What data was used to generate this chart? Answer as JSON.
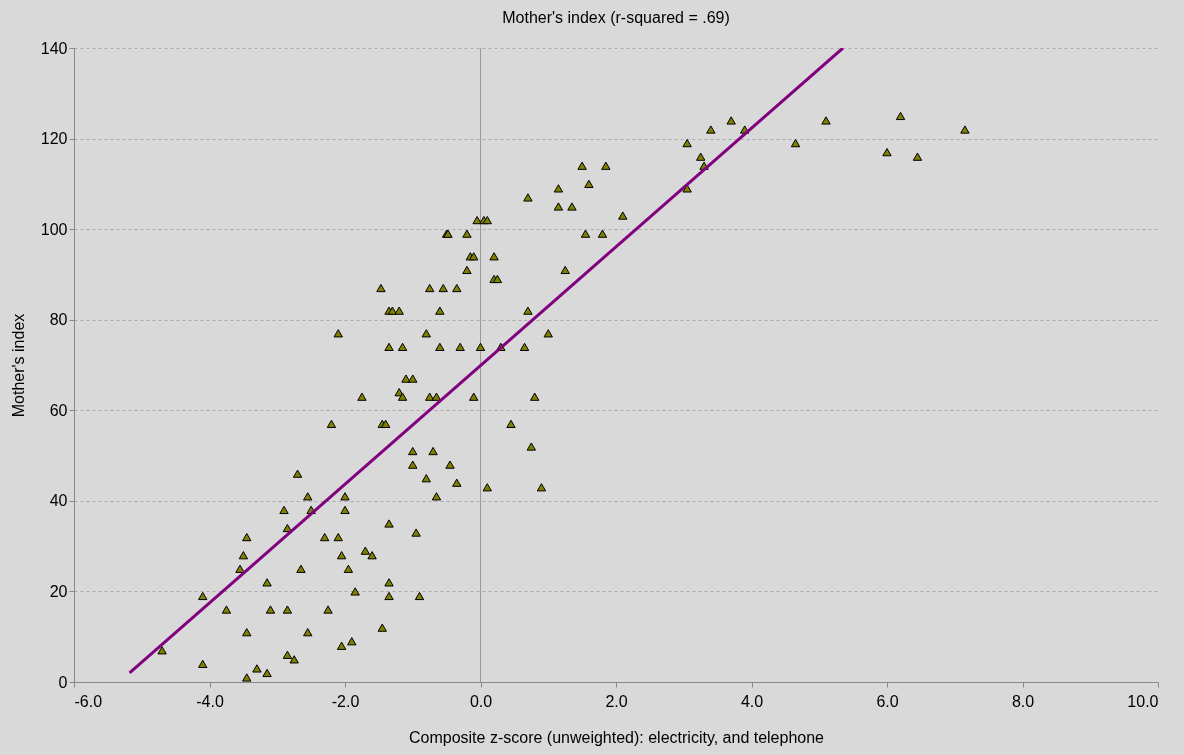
{
  "chart_data": {
    "type": "scatter",
    "title": "Mother's index (r-squared = .69)",
    "xlabel": "Composite z-score (unweighted): electricity, and telephone",
    "ylabel": "Mother's index",
    "xlim": [
      -6,
      10
    ],
    "ylim": [
      0,
      140
    ],
    "xticks": [
      {
        "value": -6,
        "label": "-6.0"
      },
      {
        "value": -4,
        "label": "-4.0"
      },
      {
        "value": -2,
        "label": "-2.0"
      },
      {
        "value": 0,
        "label": "0.0"
      },
      {
        "value": 2,
        "label": "2.0"
      },
      {
        "value": 4,
        "label": "4.0"
      },
      {
        "value": 6,
        "label": "6.0"
      },
      {
        "value": 8,
        "label": "8.0"
      },
      {
        "value": 10,
        "label": "10.0"
      }
    ],
    "yticks": [
      0,
      20,
      40,
      60,
      80,
      100,
      120,
      140
    ],
    "grid": "y",
    "ref_lines": [
      {
        "axis": "x",
        "value": 0,
        "color": "#999999"
      }
    ],
    "series": [
      {
        "marker": "triangle",
        "color": "#808000",
        "x": [
          -4.7,
          -4.1,
          -4.1,
          -3.75,
          -3.55,
          -3.5,
          -3.45,
          -3.45,
          -3.45,
          -3.3,
          -3.15,
          -3.15,
          -3.1,
          -2.9,
          -2.85,
          -2.85,
          -2.85,
          -2.75,
          -2.7,
          -2.65,
          -2.55,
          -2.55,
          -2.5,
          -2.3,
          -2.25,
          -2.2,
          -2.1,
          -2.1,
          -2.05,
          -2.05,
          -2.0,
          -2.0,
          -1.95,
          -1.9,
          -1.85,
          -1.75,
          -1.7,
          -1.6,
          -1.47,
          -1.45,
          -1.45,
          -1.4,
          -1.35,
          -1.35,
          -1.35,
          -1.35,
          -1.35,
          -1.3,
          -1.2,
          -1.2,
          -1.15,
          -1.15,
          -1.1,
          -1.0,
          -1.0,
          -1.0,
          -0.95,
          -0.9,
          -0.8,
          -0.8,
          -0.75,
          -0.75,
          -0.7,
          -0.65,
          -0.65,
          -0.6,
          -0.6,
          -0.55,
          -0.5,
          -0.48,
          -0.45,
          -0.35,
          -0.35,
          -0.3,
          -0.2,
          -0.2,
          -0.15,
          -0.1,
          -0.1,
          -0.05,
          0.0,
          0.05,
          0.1,
          0.1,
          0.2,
          0.2,
          0.25,
          0.3,
          0.45,
          0.65,
          0.7,
          0.7,
          0.75,
          0.8,
          0.9,
          1.0,
          1.15,
          1.15,
          1.25,
          1.35,
          1.5,
          1.55,
          1.6,
          1.8,
          1.85,
          2.1,
          3.05,
          3.05,
          3.25,
          3.3,
          3.4,
          3.7,
          3.9,
          4.65,
          5.1,
          6.0,
          6.2,
          6.45,
          7.15
        ],
        "values": [
          7,
          19,
          4,
          16,
          25,
          28,
          32,
          11,
          1,
          3,
          22,
          2,
          16,
          38,
          34,
          16,
          6,
          5,
          46,
          25,
          41,
          11,
          38,
          32,
          16,
          57,
          77,
          32,
          28,
          8,
          38,
          41,
          25,
          9,
          20,
          63,
          29,
          28,
          87,
          57,
          12,
          57,
          82,
          74,
          35,
          22,
          19,
          82,
          82,
          64,
          63,
          74,
          67,
          67,
          51,
          48,
          33,
          19,
          77,
          45,
          87,
          63,
          51,
          63,
          41,
          82,
          74,
          87,
          99,
          99,
          48,
          87,
          44,
          74,
          91,
          99,
          94,
          94,
          63,
          102,
          74,
          102,
          102,
          43,
          89,
          94,
          89,
          74,
          57,
          74,
          107,
          82,
          52,
          63,
          43,
          77,
          109,
          105,
          91,
          105,
          114,
          99,
          110,
          99,
          114,
          103,
          119,
          109,
          116,
          114,
          122,
          124,
          122,
          119,
          124,
          117,
          125,
          116,
          122
        ]
      },
      {
        "type": "line",
        "color": "#800080",
        "x": [
          -5.18,
          5.35
        ],
        "values": [
          2,
          140
        ]
      }
    ]
  }
}
